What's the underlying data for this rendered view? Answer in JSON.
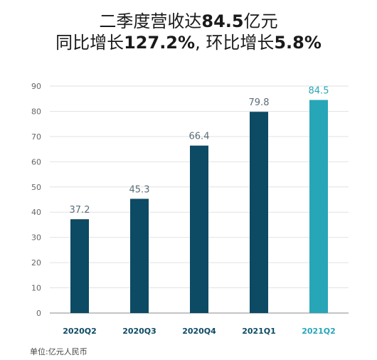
{
  "header": {
    "line1": [
      {
        "text": "二季度营收达",
        "bold": false
      },
      {
        "text": "84.5",
        "bold": true
      },
      {
        "text": "亿元",
        "bold": false
      }
    ],
    "line2": [
      {
        "text": "同比增长",
        "bold": false
      },
      {
        "text": "127.2%",
        "bold": true
      },
      {
        "text": ", 环比增长",
        "bold": false
      },
      {
        "text": "5.8%",
        "bold": true
      }
    ]
  },
  "footer": {
    "unit_note": "单位:亿元人民币"
  },
  "colors": {
    "bar": "#0d4a63",
    "bar_highlight": "#27a6b7",
    "value_label": "#5a6e78",
    "value_label_highlight": "#27a6b7",
    "grid": "#e2e2e2",
    "axis": "#888888",
    "tick": "#666666",
    "category": "#0d4a63"
  },
  "chart_data": {
    "type": "bar",
    "categories": [
      "2020Q2",
      "2020Q3",
      "2020Q4",
      "2021Q1",
      "2021Q2"
    ],
    "values": [
      37.2,
      45.3,
      66.4,
      79.8,
      84.5
    ],
    "value_labels": [
      "37.2",
      "45.3",
      "66.4",
      "79.8",
      "84.5"
    ],
    "highlight_index": 4,
    "ylim": [
      0,
      90
    ],
    "yticks": [
      "0",
      "10",
      "20",
      "30",
      "40",
      "50",
      "60",
      "70",
      "80",
      "90"
    ],
    "grid": true
  }
}
